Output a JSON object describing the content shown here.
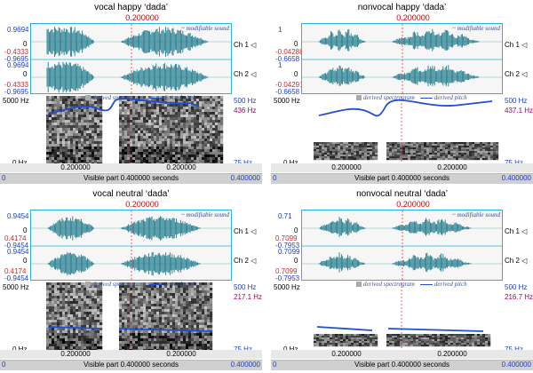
{
  "panels": [
    {
      "title": "vocal happy ‘dada’",
      "cursor": "0.200000",
      "ch1": {
        "max": "0.9694",
        "mid": "0",
        "min_marked": "-0.4333",
        "min": "-0.9695"
      },
      "ch2": {
        "max": "0.9694",
        "mid": "0",
        "min_marked": "-0.4333",
        "min": "-0.9695"
      },
      "ch1_label": "Ch 1 ◁",
      "ch2_label": "Ch 2 ◁",
      "sound_label": "~ modifiable sound",
      "spec_top": "5000 Hz",
      "spec_bottom": "0 Hz",
      "pitch_top": "500 Hz",
      "pitch_value": "436 Hz",
      "pitch_bottom": "75 Hz",
      "derived_spec": "derived spectrogram",
      "derived_pitch": "derived pitch",
      "tick_1": "0.200000",
      "tick_2": "0.200000",
      "visible_part": "Visible part 0.400000 seconds",
      "start": "0",
      "end": "0.400000"
    },
    {
      "title": "nonvocal happy ‘dada’",
      "cursor": "0.200000",
      "ch1": {
        "max": "1",
        "mid": "0",
        "min_marked": "-0.04288",
        "min": "-0.6658"
      },
      "ch2": {
        "max": "1",
        "mid": "0",
        "min_marked": "-0.04291",
        "min": "-0.6658"
      },
      "ch1_label": "Ch 1 ◁",
      "ch2_label": "Ch 2 ◁",
      "sound_label": "~ modifiable sound",
      "spec_top": "5000 Hz",
      "spec_bottom": "0 Hz",
      "pitch_top": "500 Hz",
      "pitch_value": "437.1 Hz",
      "pitch_bottom": "75 Hz",
      "derived_spec": "derived spectrogram",
      "derived_pitch": "derived pitch",
      "tick_1": "0.200000",
      "tick_2": "0.200000",
      "visible_part": "Visible part 0.400000 seconds",
      "start": "0",
      "end": "0.400000"
    },
    {
      "title": "vocal neutral ‘dada’",
      "cursor": "0.200000",
      "ch1": {
        "max": "0.9454",
        "mid": "0",
        "min_marked": "0.4174",
        "min": "-0.9454"
      },
      "ch2": {
        "max": "0.9454",
        "mid": "0",
        "min_marked": "0.4174",
        "min": "-0.9454"
      },
      "ch1_label": "Ch 1 ◁",
      "ch2_label": "Ch 2 ◁",
      "sound_label": "~ modifiable sound",
      "spec_top": "5000 Hz",
      "spec_bottom": "0 Hz",
      "pitch_top": "500 Hz",
      "pitch_value": "217.1 Hz",
      "pitch_bottom": "75 Hz",
      "derived_spec": "derived spectrogram",
      "derived_pitch": "derived pitch",
      "tick_1": "0.200000",
      "tick_2": "0.200000",
      "visible_part": "Visible part 0.400000 seconds",
      "start": "0",
      "end": "0.400000"
    },
    {
      "title": "nonvocal neutral ‘dada’",
      "cursor": "0.200000",
      "ch1": {
        "max": "0.71",
        "mid": "0",
        "min_marked": "0.7099",
        "min": "-0.7953"
      },
      "ch2": {
        "max": "0.7099",
        "mid": "0",
        "min_marked": "0.7099",
        "min": "-0.7953"
      },
      "ch1_label": "Ch 1 ◁",
      "ch2_label": "Ch 2 ◁",
      "sound_label": "~ modifiable sound",
      "spec_top": "5000 Hz",
      "spec_bottom": "0 Hz",
      "pitch_top": "500 Hz",
      "pitch_value": "216.7 Hz",
      "pitch_bottom": "75 Hz",
      "derived_spec": "derived spectrogram",
      "derived_pitch": "derived pitch",
      "tick_1": "0.200000",
      "tick_2": "0.200000",
      "visible_part": "Visible part 0.400000 seconds",
      "start": "0",
      "end": "0.400000"
    }
  ],
  "colors": {
    "waveform": "#1f7a8c",
    "waveform_light": "#9fc6d0",
    "frame": "#26b5d8",
    "cursor": "#e02020",
    "pitch": "#2050d0",
    "channel_value": "#c03030",
    "axis_label": "#2040c0"
  }
}
